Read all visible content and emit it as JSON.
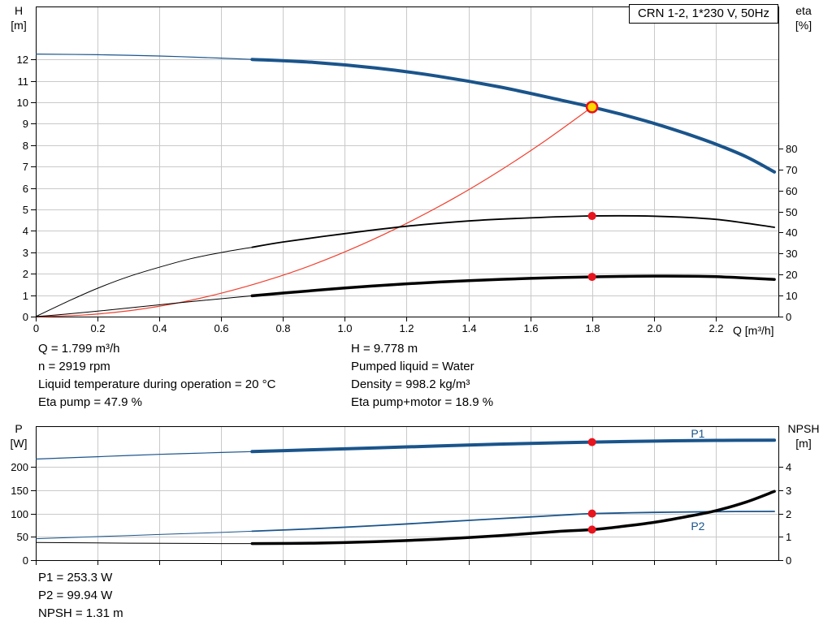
{
  "colors": {
    "curve_blue": "#1a548b",
    "curve_black": "#000000",
    "curve_red": "#f0402f",
    "marker_red": "#e8141e",
    "duty_point_yellow": "#ffd800",
    "grid": "#c9c9c9",
    "axis": "#000000"
  },
  "info_top": {
    "left": [
      "Q = 1.799 m³/h",
      "n = 2919 rpm",
      "Liquid temperature during operation = 20 °C",
      "Eta pump = 47.9 %"
    ],
    "right": [
      "H = 9.778 m",
      "Pumped liquid = Water",
      "Density = 998.2 kg/m³",
      "Eta pump+motor = 18.9 %"
    ]
  },
  "info_bottom": [
    "P1 = 253.3 W",
    "P2 = 99.94 W",
    "NPSH = 1.31 m"
  ],
  "chart_data": [
    {
      "type": "line",
      "title": "CRN 1-2, 1*230 V, 50Hz",
      "grid": true,
      "x_axis": {
        "label": "Q [m³/h]",
        "min": 0,
        "max": 2.403,
        "ticks": [
          0,
          0.2,
          0.4,
          0.6,
          0.8,
          1.0,
          1.2,
          1.4,
          1.6,
          1.8,
          2.0,
          2.2
        ],
        "tick_labels": [
          "0",
          "0.2",
          "0.4",
          "0.6",
          "0.8",
          "1.0",
          "1.2",
          "1.4",
          "1.6",
          "1.8",
          "2.0",
          "2.2"
        ]
      },
      "y_left": {
        "name": "H",
        "unit": "[m]",
        "min": 0,
        "max": 14.47,
        "ticks": [
          0,
          1,
          2,
          3,
          4,
          5,
          6,
          7,
          8,
          9,
          10,
          11,
          12
        ],
        "tick_labels": [
          "0",
          "1",
          "2",
          "3",
          "4",
          "5",
          "6",
          "7",
          "8",
          "9",
          "10",
          "11",
          "12"
        ]
      },
      "y_right": {
        "name": "eta",
        "unit": "[%]",
        "min": 0,
        "max": 147.6,
        "ticks": [
          0,
          10,
          20,
          30,
          40,
          50,
          60,
          70,
          80
        ],
        "tick_labels": [
          "0",
          "10",
          "20",
          "30",
          "40",
          "50",
          "60",
          "70",
          "80"
        ]
      },
      "series": [
        {
          "name": "head-curve",
          "axis": "left",
          "color": "#1a548b",
          "width_thin": 1.2,
          "width_thick": 4,
          "split": 0.7,
          "points": [
            [
              0,
              12.25
            ],
            [
              0.2,
              12.22
            ],
            [
              0.4,
              12.16
            ],
            [
              0.6,
              12.06
            ],
            [
              0.7,
              12.0
            ],
            [
              0.9,
              11.86
            ],
            [
              1.1,
              11.6
            ],
            [
              1.3,
              11.22
            ],
            [
              1.5,
              10.72
            ],
            [
              1.7,
              10.1
            ],
            [
              1.8,
              9.778
            ],
            [
              1.9,
              9.42
            ],
            [
              2.0,
              9.02
            ],
            [
              2.1,
              8.56
            ],
            [
              2.2,
              8.05
            ],
            [
              2.3,
              7.45
            ],
            [
              2.39,
              6.75
            ]
          ]
        },
        {
          "name": "system-resistance-curve",
          "axis": "left",
          "color": "#f0402f",
          "width_thin": 1.2,
          "width_thick": 1.2,
          "split": null,
          "points": [
            [
              0,
              0
            ],
            [
              0.15,
              0.07
            ],
            [
              0.3,
              0.27
            ],
            [
              0.45,
              0.61
            ],
            [
              0.6,
              1.09
            ],
            [
              0.75,
              1.7
            ],
            [
              0.9,
              2.44
            ],
            [
              1.05,
              3.33
            ],
            [
              1.2,
              4.35
            ],
            [
              1.35,
              5.5
            ],
            [
              1.5,
              6.79
            ],
            [
              1.65,
              8.22
            ],
            [
              1.8,
              9.778
            ]
          ]
        },
        {
          "name": "eta-pump-curve",
          "axis": "right",
          "color": "#000000",
          "width_thin": 1,
          "width_thick": 1.8,
          "split": 0.7,
          "points": [
            [
              0,
              0
            ],
            [
              0.1,
              7
            ],
            [
              0.2,
              13.5
            ],
            [
              0.3,
              19
            ],
            [
              0.4,
              23.5
            ],
            [
              0.5,
              27.5
            ],
            [
              0.6,
              30.5
            ],
            [
              0.7,
              33
            ],
            [
              0.8,
              35.5
            ],
            [
              1.0,
              39.5
            ],
            [
              1.2,
              43
            ],
            [
              1.4,
              45.5
            ],
            [
              1.6,
              47
            ],
            [
              1.8,
              47.9
            ],
            [
              2.0,
              47.8
            ],
            [
              2.2,
              46.3
            ],
            [
              2.39,
              42.5
            ]
          ]
        },
        {
          "name": "eta-pump-motor-curve",
          "axis": "right",
          "color": "#000000",
          "width_thin": 1,
          "width_thick": 3.5,
          "split": 0.7,
          "points": [
            [
              0,
              0
            ],
            [
              0.1,
              1.2
            ],
            [
              0.2,
              2.6
            ],
            [
              0.3,
              4.1
            ],
            [
              0.4,
              5.6
            ],
            [
              0.5,
              7.1
            ],
            [
              0.6,
              8.5
            ],
            [
              0.7,
              9.9
            ],
            [
              0.8,
              11.2
            ],
            [
              1.0,
              13.6
            ],
            [
              1.2,
              15.6
            ],
            [
              1.4,
              17.1
            ],
            [
              1.6,
              18.2
            ],
            [
              1.8,
              18.9
            ],
            [
              2.0,
              19.3
            ],
            [
              2.2,
              19.0
            ],
            [
              2.39,
              17.7
            ]
          ]
        }
      ],
      "markers": [
        {
          "name": "duty-point",
          "x": 1.8,
          "y": 9.778,
          "axis": "left",
          "r": 6.5,
          "fill": "#ffd800",
          "stroke": "#e8141e",
          "stroke_width": 2.5
        },
        {
          "name": "eta-pump-point",
          "x": 1.8,
          "y": 47.9,
          "axis": "right",
          "r": 5,
          "fill": "#e8141e"
        },
        {
          "name": "eta-pump-motor-point",
          "x": 1.8,
          "y": 18.9,
          "axis": "right",
          "r": 5,
          "fill": "#e8141e"
        }
      ],
      "annotations": []
    },
    {
      "type": "line",
      "title": "",
      "grid": true,
      "x_axis": {
        "label": "",
        "min": 0,
        "max": 2.403,
        "ticks": [
          0,
          0.2,
          0.4,
          0.6,
          0.8,
          1.0,
          1.2,
          1.4,
          1.6,
          1.8,
          2.0,
          2.2
        ],
        "tick_labels": []
      },
      "y_left": {
        "name": "P",
        "unit": "[W]",
        "min": 0,
        "max": 287.5,
        "ticks": [
          0,
          50,
          100,
          150,
          200
        ],
        "tick_labels": [
          "0",
          "50",
          "100",
          "150",
          "200"
        ]
      },
      "y_right": {
        "name": "NPSH",
        "unit": "[m]",
        "min": 0,
        "max": 5.75,
        "ticks": [
          0,
          1,
          2,
          3,
          4
        ],
        "tick_labels": [
          "0",
          "1",
          "2",
          "3",
          "4"
        ]
      },
      "series": [
        {
          "name": "p1-power-curve",
          "axis": "left",
          "color": "#1a548b",
          "width_thin": 1.2,
          "width_thick": 4,
          "split": 0.7,
          "points": [
            [
              0,
              217
            ],
            [
              0.2,
              222
            ],
            [
              0.4,
              227
            ],
            [
              0.6,
              231
            ],
            [
              0.7,
              233
            ],
            [
              0.9,
              237
            ],
            [
              1.1,
              241
            ],
            [
              1.3,
              245
            ],
            [
              1.5,
              249
            ],
            [
              1.7,
              252
            ],
            [
              1.8,
              253.3
            ],
            [
              2.0,
              255.5
            ],
            [
              2.2,
              257
            ],
            [
              2.39,
              257.5
            ]
          ]
        },
        {
          "name": "p2-power-curve",
          "axis": "left",
          "color": "#1a548b",
          "width_thin": 1,
          "width_thick": 1.8,
          "split": 0.7,
          "points": [
            [
              0,
              46
            ],
            [
              0.2,
              50.5
            ],
            [
              0.4,
              55
            ],
            [
              0.6,
              59.5
            ],
            [
              0.7,
              62
            ],
            [
              0.9,
              67.5
            ],
            [
              1.1,
              74
            ],
            [
              1.3,
              81.5
            ],
            [
              1.5,
              89
            ],
            [
              1.7,
              96.5
            ],
            [
              1.8,
              99.94
            ],
            [
              2.0,
              102.5
            ],
            [
              2.2,
              104
            ],
            [
              2.39,
              104.5
            ]
          ]
        },
        {
          "name": "npsh-curve",
          "axis": "right",
          "color": "#000000",
          "width_thin": 1,
          "width_thick": 3.5,
          "split": 0.7,
          "points": [
            [
              0,
              0.76
            ],
            [
              0.3,
              0.73
            ],
            [
              0.6,
              0.71
            ],
            [
              0.7,
              0.71
            ],
            [
              0.9,
              0.73
            ],
            [
              1.1,
              0.79
            ],
            [
              1.3,
              0.9
            ],
            [
              1.5,
              1.05
            ],
            [
              1.7,
              1.24
            ],
            [
              1.8,
              1.31
            ],
            [
              1.9,
              1.45
            ],
            [
              2.0,
              1.62
            ],
            [
              2.1,
              1.85
            ],
            [
              2.2,
              2.12
            ],
            [
              2.3,
              2.5
            ],
            [
              2.39,
              2.95
            ]
          ]
        }
      ],
      "markers": [
        {
          "name": "p1-point",
          "x": 1.8,
          "y": 253.3,
          "axis": "left",
          "r": 5,
          "fill": "#e8141e"
        },
        {
          "name": "p2-point",
          "x": 1.8,
          "y": 99.94,
          "axis": "left",
          "r": 5,
          "fill": "#e8141e"
        },
        {
          "name": "npsh-point",
          "x": 1.8,
          "y": 1.31,
          "axis": "right",
          "r": 5,
          "fill": "#e8141e"
        }
      ],
      "annotations": [
        {
          "text": "P1",
          "x": 2.12,
          "y": 272,
          "axis": "left",
          "color": "#1a548b"
        },
        {
          "text": "P2",
          "x": 2.12,
          "y": 73,
          "axis": "left",
          "color": "#1a548b"
        }
      ]
    }
  ]
}
